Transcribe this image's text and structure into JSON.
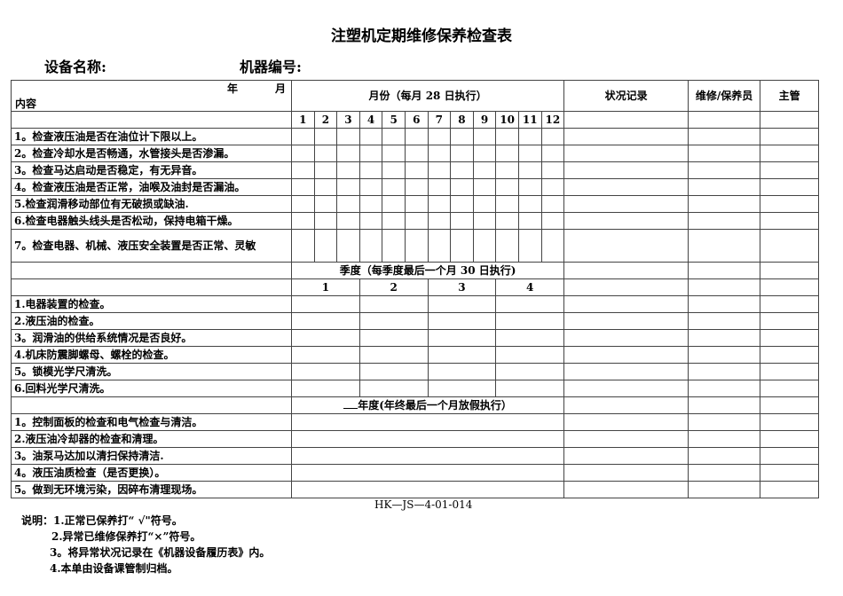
{
  "title": "注塑机定期维修保养检查表",
  "fields": {
    "equipment_name": "设备名称:",
    "machine_no": "机器编号:"
  },
  "header": {
    "year": "年",
    "month": "月",
    "content": "内容",
    "monthly": "月份（每月 28 日执行）",
    "status": "状况记录",
    "maintainer": "维修/保养员",
    "supervisor": "主管"
  },
  "months": [
    "1",
    "2",
    "3",
    "4",
    "5",
    "6",
    "7",
    "8",
    "9",
    "10",
    "11",
    "12"
  ],
  "monthly_items": [
    "1。检查液压油是否在油位计下限以上。",
    "2。检查冷却水是否畅通，水管接头是否渗漏。",
    "3。检查马达启动是否稳定，有无异音。",
    "4。检查液压油是否正常，油喉及油封是否漏油。",
    "5.检查润滑移动部位有无破损或缺油.",
    "6.检查电器触头线头是否松动，保持电箱干燥。",
    "7。检查电器、机械、液压安全装置是否正常、灵敏"
  ],
  "quarterly": {
    "header": "季度（每季度最后一个月 30 日执行)",
    "quarters": [
      "1",
      "2",
      "3",
      "4"
    ],
    "items": [
      "1.电器装置的检查。",
      "2.液压油的检查。",
      "3。润滑油的供给系统情况是否良好。",
      "4.机床防震脚螺母、螺栓的检查。",
      "5。锁模光学尺清洗。",
      "6.回料光学尺清洗。"
    ]
  },
  "annual": {
    "header": "年度(年终最后一个月放假执行）",
    "items": [
      "1。控制面板的检查和电气检查与清洁。",
      "2.液压油冷却器的检查和清理。",
      "3。油泵马达加以清扫保持清洁.",
      "4。液压油质检查（是否更换）。",
      "5。做到无环境污染，因碎布清理现场。"
    ]
  },
  "doc_code": "HK—JS—4-01-014",
  "notes": [
    "说明：1.正常已保养打“ √\"符号。",
    "2.异常已维修保养打“×”符号。",
    "3。将异常状况记录在《机器设备履历表》内。",
    "4.本单由设备课管制归档。"
  ]
}
